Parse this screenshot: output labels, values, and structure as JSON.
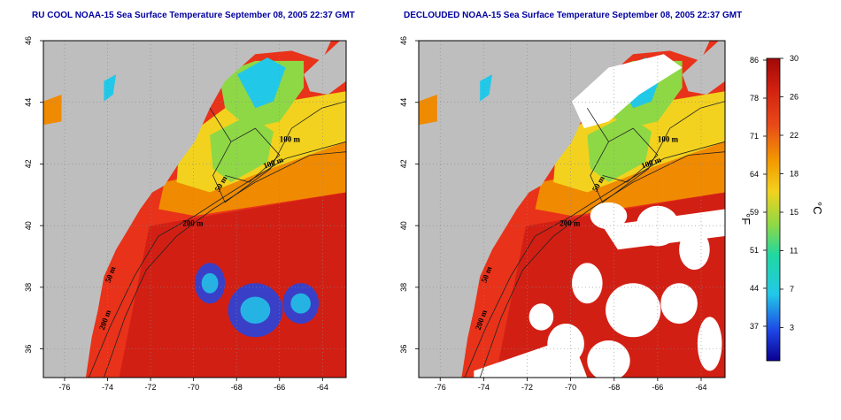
{
  "maps": [
    {
      "title": "RU COOL NOAA-15 Sea Surface Temperature September 08, 2005 22:37 GMT",
      "declouded": false,
      "x_ticks": [
        "-76",
        "-74",
        "-72",
        "-70",
        "-68",
        "-66",
        "-64"
      ],
      "y_ticks": [
        "46",
        "44",
        "42",
        "40",
        "38",
        "36"
      ],
      "contours": [
        "100 m",
        "100 m",
        "50 m",
        "200 m",
        "50 m",
        "200 m"
      ]
    },
    {
      "title": "DECLOUDED NOAA-15 Sea Surface Temperature September 08, 2005 22:37 GMT",
      "declouded": true,
      "x_ticks": [
        "-76",
        "-74",
        "-72",
        "-70",
        "-68",
        "-66",
        "-64"
      ],
      "y_ticks": [
        "46",
        "44",
        "42",
        "40",
        "38",
        "36"
      ],
      "contours": [
        "100 m",
        "100 m",
        "50 m",
        "200 m",
        "50 m",
        "200 m"
      ]
    }
  ],
  "colorbar": {
    "f_label": "°F",
    "c_label": "°C",
    "f_ticks": [
      "86",
      "78",
      "71",
      "64",
      "59",
      "51",
      "44",
      "37"
    ],
    "c_ticks": [
      "30",
      "26",
      "22",
      "18",
      "15",
      "11",
      "7",
      "3"
    ]
  },
  "colors": {
    "land": "#bebebe",
    "warm": "#e8321a",
    "hot": "#c01010",
    "mid": "#f08a00",
    "yellow": "#f2d21e",
    "green": "#8ed846",
    "cyan": "#22c8e8",
    "blue": "#1e46e6",
    "cloud": "#ffffff"
  }
}
